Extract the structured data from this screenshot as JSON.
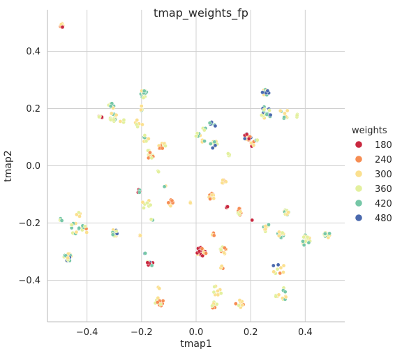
{
  "chart_data": {
    "type": "scatter",
    "title": "tmap_weights_fp",
    "xlabel": "tmap1",
    "ylabel": "tmap2",
    "xlim": [
      -0.545,
      0.545
    ],
    "ylim": [
      -0.545,
      0.545
    ],
    "x_ticks": [
      -0.4,
      -0.2,
      0.0,
      0.2,
      0.4
    ],
    "x_tick_labels": [
      "−0.4",
      "−0.2",
      "0.0",
      "0.2",
      "0.4"
    ],
    "y_ticks": [
      -0.4,
      -0.2,
      0.0,
      0.2,
      0.4
    ],
    "y_tick_labels": [
      "−0.4",
      "−0.2",
      "0.0",
      "0.2",
      "0.4"
    ],
    "grid": true,
    "legend": {
      "title": "weights",
      "placement": "right",
      "entries": [
        {
          "label": "180",
          "color": "#c9283f"
        },
        {
          "label": "240",
          "color": "#f68d53"
        },
        {
          "label": "300",
          "color": "#fbe08f"
        },
        {
          "label": "360",
          "color": "#e3f09e"
        },
        {
          "label": "420",
          "color": "#76c7a7"
        },
        {
          "label": "480",
          "color": "#4a69ad"
        }
      ]
    },
    "clusters": [
      {
        "x": -0.495,
        "y": 0.49,
        "n": 7,
        "spread": 0.008,
        "weights": [
          180,
          240,
          300
        ]
      },
      {
        "x": -0.31,
        "y": 0.21,
        "n": 10,
        "spread": 0.012,
        "weights": [
          300,
          360,
          420
        ]
      },
      {
        "x": -0.35,
        "y": 0.17,
        "n": 7,
        "spread": 0.008,
        "weights": [
          180,
          300,
          360
        ]
      },
      {
        "x": -0.305,
        "y": 0.17,
        "n": 14,
        "spread": 0.015,
        "weights": [
          300,
          360,
          420
        ]
      },
      {
        "x": -0.27,
        "y": 0.16,
        "n": 4,
        "spread": 0.01,
        "weights": [
          300,
          360
        ]
      },
      {
        "x": -0.19,
        "y": 0.25,
        "n": 18,
        "spread": 0.015,
        "weights": [
          300,
          360,
          420
        ]
      },
      {
        "x": -0.2,
        "y": 0.2,
        "n": 4,
        "spread": 0.01,
        "weights": [
          300,
          360,
          420
        ]
      },
      {
        "x": -0.21,
        "y": 0.15,
        "n": 6,
        "spread": 0.018,
        "weights": [
          300,
          360
        ]
      },
      {
        "x": -0.185,
        "y": 0.095,
        "n": 8,
        "spread": 0.012,
        "weights": [
          240,
          300,
          360,
          420
        ]
      },
      {
        "x": -0.17,
        "y": 0.04,
        "n": 10,
        "spread": 0.016,
        "weights": [
          240,
          300,
          360
        ]
      },
      {
        "x": -0.125,
        "y": 0.07,
        "n": 10,
        "spread": 0.014,
        "weights": [
          240,
          300,
          360
        ]
      },
      {
        "x": -0.14,
        "y": -0.02,
        "n": 2,
        "spread": 0.004,
        "weights": [
          360
        ]
      },
      {
        "x": -0.115,
        "y": -0.07,
        "n": 2,
        "spread": 0.004,
        "weights": [
          300,
          420
        ]
      },
      {
        "x": -0.21,
        "y": -0.085,
        "n": 6,
        "spread": 0.01,
        "weights": [
          180,
          360,
          420
        ]
      },
      {
        "x": -0.185,
        "y": -0.135,
        "n": 8,
        "spread": 0.02,
        "weights": [
          300,
          360
        ]
      },
      {
        "x": -0.16,
        "y": -0.19,
        "n": 3,
        "spread": 0.006,
        "weights": [
          300,
          360,
          420
        ]
      },
      {
        "x": -0.09,
        "y": -0.13,
        "n": 10,
        "spread": 0.012,
        "weights": [
          240,
          300,
          360
        ]
      },
      {
        "x": -0.02,
        "y": -0.13,
        "n": 3,
        "spread": 0.005,
        "weights": [
          300,
          360
        ]
      },
      {
        "x": 0.005,
        "y": 0.11,
        "n": 6,
        "spread": 0.012,
        "weights": [
          300,
          360,
          420
        ]
      },
      {
        "x": 0.03,
        "y": 0.13,
        "n": 3,
        "spread": 0.006,
        "weights": [
          300,
          360,
          420
        ]
      },
      {
        "x": 0.06,
        "y": 0.145,
        "n": 6,
        "spread": 0.012,
        "weights": [
          240,
          420,
          480
        ]
      },
      {
        "x": 0.065,
        "y": 0.075,
        "n": 10,
        "spread": 0.014,
        "weights": [
          300,
          360,
          420,
          480
        ]
      },
      {
        "x": 0.025,
        "y": 0.085,
        "n": 3,
        "spread": 0.006,
        "weights": [
          300,
          420
        ]
      },
      {
        "x": 0.12,
        "y": 0.04,
        "n": 4,
        "spread": 0.006,
        "weights": [
          360,
          420
        ]
      },
      {
        "x": 0.19,
        "y": 0.1,
        "n": 14,
        "spread": 0.014,
        "weights": [
          180,
          240,
          300,
          480
        ]
      },
      {
        "x": 0.21,
        "y": 0.075,
        "n": 5,
        "spread": 0.01,
        "weights": [
          180,
          240,
          300,
          420
        ]
      },
      {
        "x": 0.22,
        "y": 0.09,
        "n": 3,
        "spread": 0.005,
        "weights": [
          360,
          420
        ]
      },
      {
        "x": 0.255,
        "y": 0.255,
        "n": 14,
        "spread": 0.012,
        "weights": [
          240,
          300,
          420,
          480
        ]
      },
      {
        "x": 0.255,
        "y": 0.185,
        "n": 18,
        "spread": 0.022,
        "weights": [
          300,
          360,
          420,
          480
        ]
      },
      {
        "x": 0.32,
        "y": 0.18,
        "n": 8,
        "spread": 0.02,
        "weights": [
          300,
          360,
          420
        ]
      },
      {
        "x": 0.37,
        "y": 0.175,
        "n": 3,
        "spread": 0.006,
        "weights": [
          360
        ]
      },
      {
        "x": 0.1,
        "y": -0.05,
        "n": 6,
        "spread": 0.012,
        "weights": [
          240,
          300
        ]
      },
      {
        "x": 0.06,
        "y": -0.11,
        "n": 10,
        "spread": 0.015,
        "weights": [
          240,
          300,
          360
        ]
      },
      {
        "x": 0.11,
        "y": -0.145,
        "n": 4,
        "spread": 0.006,
        "weights": [
          180,
          300,
          360
        ]
      },
      {
        "x": 0.165,
        "y": -0.16,
        "n": 10,
        "spread": 0.014,
        "weights": [
          240,
          300,
          360
        ]
      },
      {
        "x": 0.205,
        "y": -0.19,
        "n": 1,
        "spread": 0.002,
        "weights": [
          180
        ]
      },
      {
        "x": 0.255,
        "y": -0.215,
        "n": 8,
        "spread": 0.016,
        "weights": [
          300,
          360,
          420
        ]
      },
      {
        "x": 0.33,
        "y": -0.165,
        "n": 12,
        "spread": 0.012,
        "weights": [
          300,
          360,
          420
        ]
      },
      {
        "x": 0.31,
        "y": -0.24,
        "n": 14,
        "spread": 0.012,
        "weights": [
          300,
          360,
          420
        ]
      },
      {
        "x": 0.4,
        "y": -0.26,
        "n": 14,
        "spread": 0.018,
        "weights": [
          300,
          360,
          420
        ]
      },
      {
        "x": 0.48,
        "y": -0.24,
        "n": 14,
        "spread": 0.012,
        "weights": [
          300,
          360,
          420
        ]
      },
      {
        "x": 0.3,
        "y": -0.36,
        "n": 10,
        "spread": 0.025,
        "weights": [
          240,
          300,
          360,
          480
        ]
      },
      {
        "x": 0.315,
        "y": -0.45,
        "n": 12,
        "spread": 0.025,
        "weights": [
          300,
          360,
          420
        ]
      },
      {
        "x": 0.02,
        "y": -0.3,
        "n": 16,
        "spread": 0.018,
        "weights": [
          180,
          240,
          300
        ]
      },
      {
        "x": 0.065,
        "y": -0.24,
        "n": 3,
        "spread": 0.006,
        "weights": [
          240,
          300
        ]
      },
      {
        "x": 0.1,
        "y": -0.295,
        "n": 10,
        "spread": 0.014,
        "weights": [
          240,
          300,
          360
        ]
      },
      {
        "x": 0.095,
        "y": -0.355,
        "n": 3,
        "spread": 0.005,
        "weights": [
          240,
          300
        ]
      },
      {
        "x": 0.075,
        "y": -0.44,
        "n": 8,
        "spread": 0.02,
        "weights": [
          300,
          360
        ]
      },
      {
        "x": 0.065,
        "y": -0.485,
        "n": 8,
        "spread": 0.014,
        "weights": [
          240,
          300,
          360
        ]
      },
      {
        "x": 0.16,
        "y": -0.485,
        "n": 10,
        "spread": 0.018,
        "weights": [
          240,
          300,
          360
        ]
      },
      {
        "x": -0.135,
        "y": -0.475,
        "n": 12,
        "spread": 0.016,
        "weights": [
          240,
          300,
          360
        ]
      },
      {
        "x": -0.14,
        "y": -0.43,
        "n": 3,
        "spread": 0.006,
        "weights": [
          300
        ]
      },
      {
        "x": -0.17,
        "y": -0.34,
        "n": 8,
        "spread": 0.014,
        "weights": [
          180,
          360,
          420,
          480
        ]
      },
      {
        "x": -0.19,
        "y": -0.31,
        "n": 3,
        "spread": 0.006,
        "weights": [
          420,
          480
        ]
      },
      {
        "x": -0.3,
        "y": -0.235,
        "n": 16,
        "spread": 0.012,
        "weights": [
          300,
          360,
          420,
          480
        ]
      },
      {
        "x": -0.205,
        "y": -0.245,
        "n": 3,
        "spread": 0.004,
        "weights": [
          240,
          300
        ]
      },
      {
        "x": -0.47,
        "y": -0.32,
        "n": 16,
        "spread": 0.014,
        "weights": [
          300,
          360,
          420,
          480
        ]
      },
      {
        "x": -0.445,
        "y": -0.22,
        "n": 12,
        "spread": 0.02,
        "weights": [
          300,
          360,
          420
        ]
      },
      {
        "x": -0.43,
        "y": -0.17,
        "n": 5,
        "spread": 0.008,
        "weights": [
          300,
          360
        ]
      },
      {
        "x": -0.495,
        "y": -0.185,
        "n": 4,
        "spread": 0.008,
        "weights": [
          360,
          420
        ]
      },
      {
        "x": -0.405,
        "y": -0.22,
        "n": 8,
        "spread": 0.016,
        "weights": [
          240,
          300,
          360,
          420
        ]
      }
    ]
  }
}
